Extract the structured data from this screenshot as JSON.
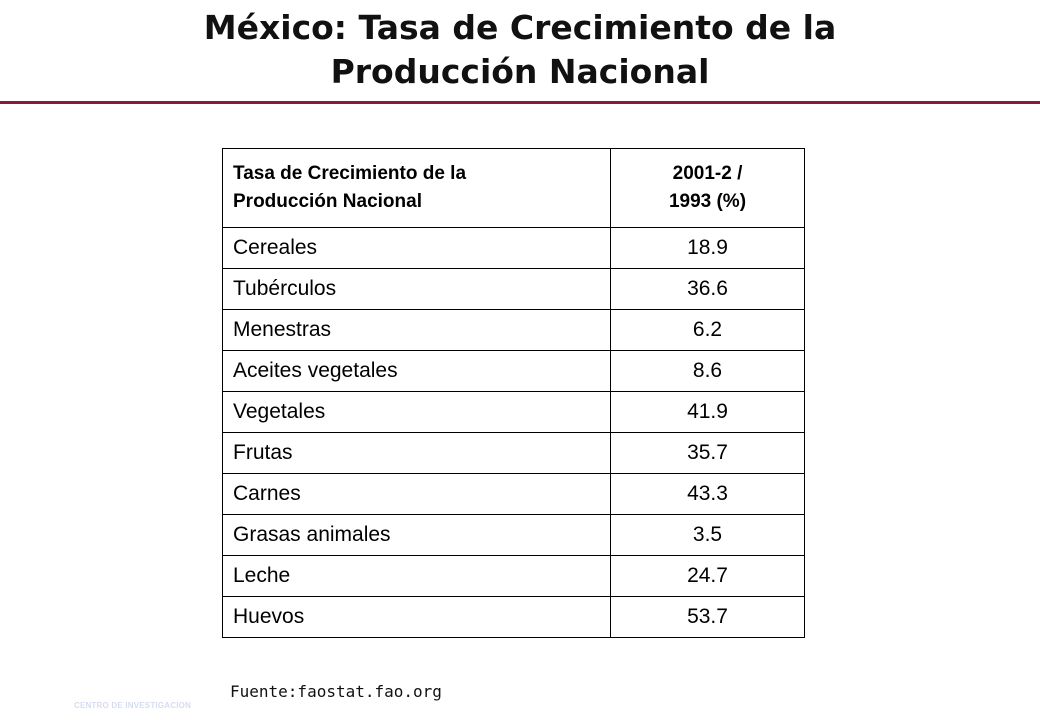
{
  "slide": {
    "title_line1": "México: Tasa de Crecimiento de la",
    "title_line2": "Producción Nacional",
    "rule_color": "#8b1a3a"
  },
  "table": {
    "header": {
      "label_line1": "Tasa de Crecimiento de la",
      "label_line2": "Producción Nacional",
      "value_line1": "2001-2 /",
      "value_line2": "1993 (%)"
    },
    "rows": [
      {
        "label": "Cereales",
        "value": "18.9"
      },
      {
        "label": "Tubérculos",
        "value": "36.6"
      },
      {
        "label": "Menestras",
        "value": "6.2"
      },
      {
        "label": "Aceites vegetales",
        "value": "8.6"
      },
      {
        "label": "Vegetales",
        "value": "41.9"
      },
      {
        "label": "Frutas",
        "value": "35.7"
      },
      {
        "label": "Carnes",
        "value": "43.3"
      },
      {
        "label": "Grasas animales",
        "value": "3.5"
      },
      {
        "label": "Leche",
        "value": "24.7"
      },
      {
        "label": "Huevos",
        "value": "53.7"
      }
    ]
  },
  "source": "Fuente:faostat.fao.org",
  "footer_watermark": "CENTRO DE INVESTIGACION"
}
